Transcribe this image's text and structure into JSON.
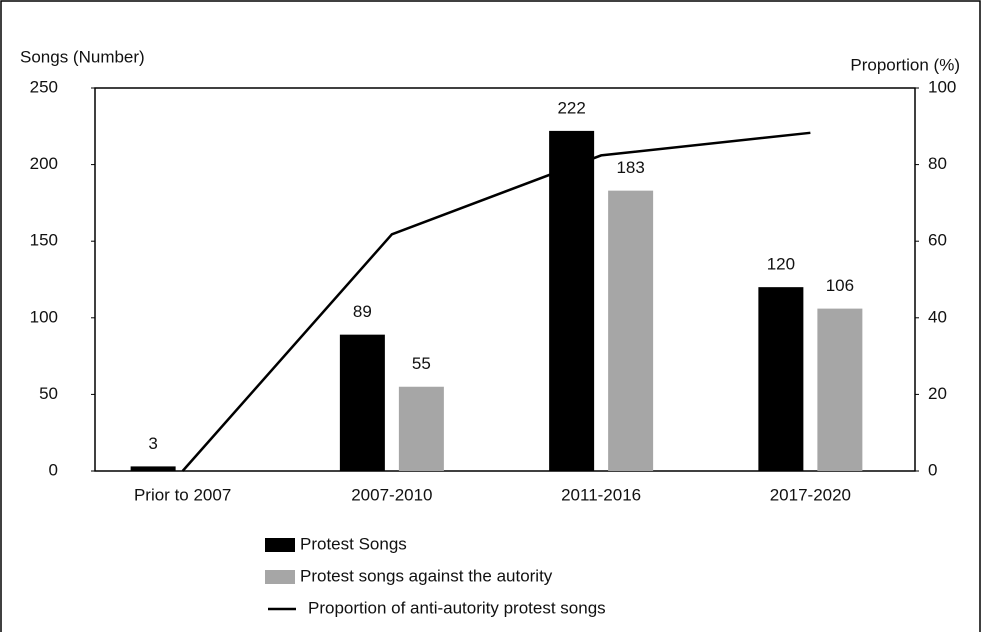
{
  "chart_data": {
    "type": "bar",
    "y_label": "Songs (Number)",
    "y2_label": "Proportion (%)",
    "categories": [
      "Prior to 2007",
      "2007-2010",
      "2011-2016",
      "2017-2020"
    ],
    "series": [
      {
        "name": "Protest Songs",
        "color": "#000000",
        "values": [
          3,
          89,
          222,
          120
        ]
      },
      {
        "name": "Protest songs against the autority",
        "color": "#a6a6a6",
        "values": [
          0,
          55,
          183,
          106
        ],
        "value_labels": [
          null,
          "55",
          "183",
          "106"
        ]
      },
      {
        "name": "Proportion of anti-autority protest songs",
        "type": "line",
        "axis": "y2",
        "color": "#000000",
        "values": [
          0,
          61.8,
          82.4,
          88.3
        ]
      }
    ],
    "ylim": [
      0,
      250
    ],
    "yticks": [
      0,
      50,
      100,
      150,
      200,
      250
    ],
    "y2lim": [
      0,
      100
    ],
    "y2ticks": [
      0,
      20,
      40,
      60,
      80,
      100
    ]
  }
}
